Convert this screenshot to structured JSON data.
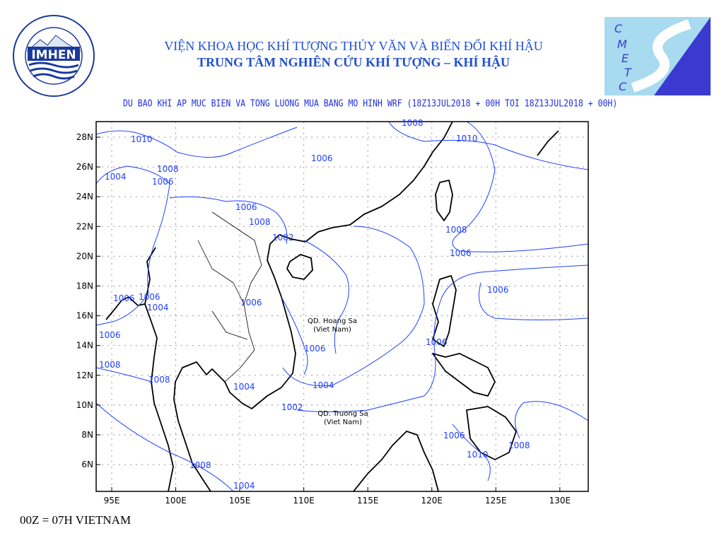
{
  "header": {
    "institute": "VIỆN KHOA HỌC KHÍ TƯỢNG THỦY VĂN VÀ BIẾN ĐỔI KHÍ HẬU",
    "center": "TRUNG TÂM NGHIÊN CỨU KHÍ TƯỢNG – KHÍ HẬU",
    "map_title": "DU BAO KHI AP MUC BIEN VA TONG LUONG MUA BANG MO HINH WRF (18Z13JUL2018 + 00H TOI 18Z13JUL2018 + 00H)"
  },
  "logos": {
    "left": {
      "text": "IMHEN",
      "ring": "VIỆN KHOA HỌC KHÍ TƯỢNG THỦY VĂN VÀ BIẾN ĐỔI KHÍ HẬU"
    },
    "right": {
      "letters": [
        "C",
        "M",
        "E",
        "T",
        "C"
      ]
    }
  },
  "map": {
    "lon_ticks": [
      "95E",
      "100E",
      "105E",
      "110E",
      "115E",
      "120E",
      "125E",
      "130E"
    ],
    "lat_ticks": [
      "28N",
      "26N",
      "24N",
      "22N",
      "20N",
      "18N",
      "16N",
      "14N",
      "12N",
      "10N",
      "8N",
      "6N"
    ],
    "place_labels": [
      {
        "line1": "QD. Hoang Sa",
        "line2": "(Viet Nam)"
      },
      {
        "line1": "QD. Truong Sa",
        "line2": "(Viet Nam)"
      }
    ],
    "contour_labels": [
      "1008",
      "1010",
      "1010",
      "1004",
      "1008",
      "1006",
      "1006",
      "1006",
      "1008",
      "1006",
      "1002",
      "1006",
      "1008",
      "1006",
      "1006",
      "1004",
      "1006",
      "1006",
      "1004",
      "1002",
      "1004",
      "1006",
      "1008",
      "1006",
      "1004",
      "1006",
      "1008",
      "1010",
      "1008",
      "1008"
    ],
    "colors": {
      "contour": "#2040ff",
      "coast": "#000000",
      "grid": "#999999",
      "title": "#1f4fd0"
    }
  },
  "footer": {
    "note": "00Z = 07H VIETNAM"
  }
}
